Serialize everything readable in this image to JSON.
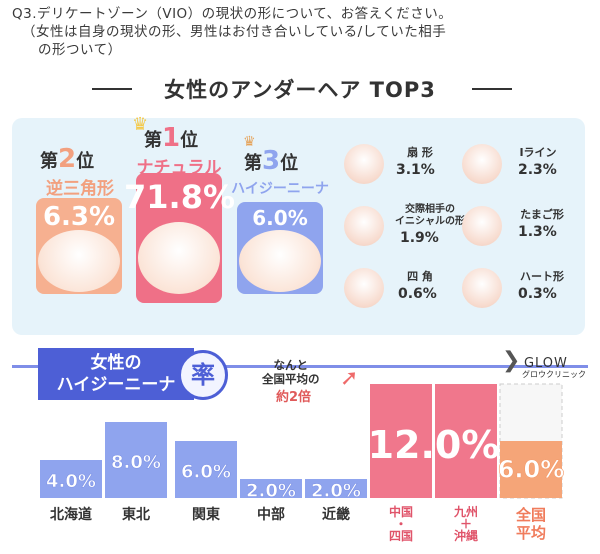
{
  "question": {
    "line1": "Q3.デリケートゾーン（VIO）の現状の形について、お答えください。",
    "line2": "（女性は自身の現状の形、男性はお付き合いしている/していた相手",
    "line3": "の形ついて）"
  },
  "section_title": "女性のアンダーヘア TOP3",
  "top3": [
    {
      "rank_prefix": "第",
      "rank": "2",
      "rank_suffix": "位",
      "name": "逆三角形",
      "value": "6.3%",
      "color": "#f4a385"
    },
    {
      "rank_prefix": "第",
      "rank": "1",
      "rank_suffix": "位",
      "name": "ナチュラル",
      "value": "71.8%",
      "color": "#ef7087"
    },
    {
      "rank_prefix": "第",
      "rank": "3",
      "rank_suffix": "位",
      "name": "ハイジーニーナ",
      "value": "6.0%",
      "color": "#8fa4ee"
    }
  ],
  "others": [
    {
      "label": "扇 形",
      "value": "3.1%"
    },
    {
      "label": "Iライン",
      "value": "2.3%"
    },
    {
      "label": "交際相手の\nイニシャルの形",
      "value": "1.9%"
    },
    {
      "label": "たまご形",
      "value": "1.3%"
    },
    {
      "label": "四 角",
      "value": "0.6%"
    },
    {
      "label": "ハート形",
      "value": "0.3%"
    }
  ],
  "regional": {
    "banner_line1": "女性の",
    "banner_line2": "ハイジーニーナ",
    "banner_char": "率",
    "note_line1": "なんと",
    "note_line2": "全国平均の",
    "note_line3": "約2倍",
    "brand": "GLOW",
    "brand_sub": "グロウクリニック"
  },
  "chart_data": {
    "type": "bar",
    "title": "女性のハイジーニーナ率",
    "categories": [
      "北海道",
      "東北",
      "関東",
      "中部",
      "近畿",
      "中国・四国",
      "九州＋沖縄",
      "全国平均"
    ],
    "category_lines": [
      [
        "北海道"
      ],
      [
        "東北"
      ],
      [
        "関東"
      ],
      [
        "中部"
      ],
      [
        "近畿"
      ],
      [
        "中国",
        "・",
        "四国"
      ],
      [
        "九州",
        "＋",
        "沖縄"
      ],
      [
        "全国",
        "平均"
      ]
    ],
    "values": [
      4.0,
      8.0,
      6.0,
      2.0,
      2.0,
      12.0,
      12.0,
      6.0
    ],
    "labels": [
      "4.0%",
      "8.0%",
      "6.0%",
      "2.0%",
      "2.0%",
      "12.0%",
      "",
      "6.0%"
    ],
    "colors": {
      "regular": "#8fa4ee",
      "highlight": "#f0778c",
      "average": "#f5a578",
      "average_bg": "#f7f7f7"
    },
    "ylim": [
      0,
      12
    ]
  }
}
